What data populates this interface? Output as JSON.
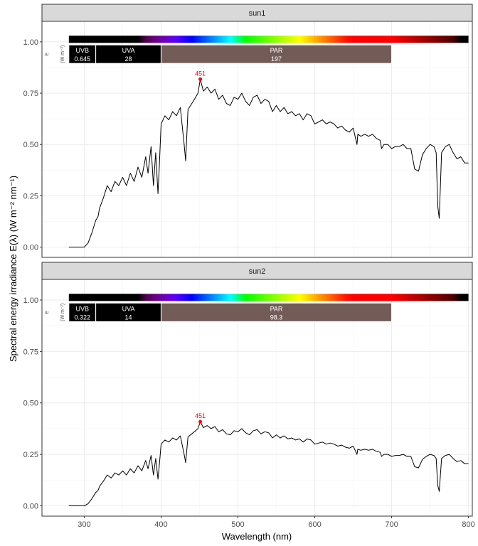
{
  "chart_data": {
    "type": "line",
    "xlabel": "Wavelength (nm)",
    "ylabel": "Spectral energy irradiance E(λ) (W m⁻² nm⁻¹)",
    "xlim": [
      245,
      805
    ],
    "ylim": [
      -0.05,
      1.1
    ],
    "x_ticks": [
      300,
      400,
      500,
      600,
      700,
      800
    ],
    "x_tick_labels": [
      "300",
      "400",
      "500",
      "600",
      "700",
      "800"
    ],
    "y_ticks": [
      0,
      0.25,
      0.5,
      0.75,
      1.0
    ],
    "y_tick_labels": [
      "0.00",
      "0.25",
      "0.50",
      "0.75",
      "1.00"
    ],
    "grid": true,
    "colors": {
      "panel_border": "#333333",
      "strip_fill": "#d9d9d9",
      "grid_major": "#ebebeb",
      "grid_minor": "#f5f5f5",
      "line": "#000000",
      "peak": "#ff0000",
      "uv_band": "#000000",
      "par_band": "#735c58"
    },
    "unit_label": {
      "title": "E",
      "units": "(W m⁻²)"
    },
    "panels": [
      {
        "strip": "sun1",
        "bands": [
          {
            "name": "UVB",
            "value": "0.645",
            "from": 280,
            "to": 315
          },
          {
            "name": "UVA",
            "value": "28",
            "from": 315,
            "to": 400
          },
          {
            "name": "PAR",
            "value": "197",
            "from": 400,
            "to": 700
          }
        ],
        "peak": {
          "x": 451,
          "y": 0.818,
          "label": "451"
        },
        "series": [
          {
            "x": [
              280,
              290,
              300,
              305,
              310,
              315,
              318,
              320,
              325,
              330,
              335,
              340,
              345,
              350,
              355,
              360,
              365,
              370,
              375,
              380,
              383,
              387,
              390,
              393,
              396,
              398,
              400,
              405,
              410,
              415,
              420,
              425,
              430,
              432,
              435,
              440,
              445,
              448,
              451,
              455,
              460,
              465,
              470,
              475,
              480,
              485,
              490,
              495,
              500,
              505,
              510,
              515,
              520,
              525,
              530,
              535,
              540,
              545,
              550,
              555,
              560,
              565,
              570,
              575,
              580,
              585,
              590,
              595,
              600,
              605,
              610,
              615,
              620,
              625,
              630,
              635,
              640,
              645,
              650,
              655,
              656,
              660,
              665,
              670,
              675,
              680,
              685,
              687,
              690,
              695,
              700,
              705,
              710,
              715,
              720,
              725,
              730,
              735,
              740,
              745,
              750,
              755,
              758,
              760,
              762,
              765,
              770,
              775,
              780,
              785,
              790,
              795,
              800
            ],
            "y": [
              0,
              0,
              0,
              0.02,
              0.07,
              0.13,
              0.15,
              0.19,
              0.24,
              0.3,
              0.27,
              0.32,
              0.3,
              0.34,
              0.3,
              0.36,
              0.32,
              0.39,
              0.34,
              0.44,
              0.36,
              0.49,
              0.3,
              0.46,
              0.26,
              0.42,
              0.6,
              0.64,
              0.62,
              0.66,
              0.64,
              0.68,
              0.5,
              0.42,
              0.67,
              0.7,
              0.73,
              0.75,
              0.818,
              0.76,
              0.78,
              0.75,
              0.77,
              0.72,
              0.74,
              0.7,
              0.69,
              0.73,
              0.72,
              0.75,
              0.71,
              0.69,
              0.73,
              0.74,
              0.7,
              0.72,
              0.71,
              0.66,
              0.69,
              0.66,
              0.68,
              0.65,
              0.66,
              0.64,
              0.65,
              0.62,
              0.65,
              0.64,
              0.6,
              0.61,
              0.62,
              0.6,
              0.61,
              0.6,
              0.58,
              0.59,
              0.57,
              0.56,
              0.58,
              0.5,
              0.55,
              0.54,
              0.55,
              0.54,
              0.55,
              0.53,
              0.52,
              0.48,
              0.5,
              0.5,
              0.48,
              0.49,
              0.49,
              0.5,
              0.48,
              0.48,
              0.38,
              0.37,
              0.45,
              0.48,
              0.5,
              0.49,
              0.46,
              0.2,
              0.14,
              0.46,
              0.49,
              0.5,
              0.46,
              0.43,
              0.44,
              0.41,
              0.41
            ]
          }
        ]
      },
      {
        "strip": "sun2",
        "bands": [
          {
            "name": "UVB",
            "value": "0.322",
            "from": 280,
            "to": 315
          },
          {
            "name": "UVA",
            "value": "14",
            "from": 315,
            "to": 400
          },
          {
            "name": "PAR",
            "value": "98.3",
            "from": 400,
            "to": 700
          }
        ],
        "peak": {
          "x": 451,
          "y": 0.409,
          "label": "451"
        },
        "series": [
          {
            "x": [
              280,
              290,
              300,
              305,
              310,
              315,
              318,
              320,
              325,
              330,
              335,
              340,
              345,
              350,
              355,
              360,
              365,
              370,
              375,
              380,
              383,
              387,
              390,
              393,
              396,
              398,
              400,
              405,
              410,
              415,
              420,
              425,
              430,
              432,
              435,
              440,
              445,
              448,
              451,
              455,
              460,
              465,
              470,
              475,
              480,
              485,
              490,
              495,
              500,
              505,
              510,
              515,
              520,
              525,
              530,
              535,
              540,
              545,
              550,
              555,
              560,
              565,
              570,
              575,
              580,
              585,
              590,
              595,
              600,
              605,
              610,
              615,
              620,
              625,
              630,
              635,
              640,
              645,
              650,
              655,
              656,
              660,
              665,
              670,
              675,
              680,
              685,
              687,
              690,
              695,
              700,
              705,
              710,
              715,
              720,
              725,
              730,
              735,
              740,
              745,
              750,
              755,
              758,
              760,
              762,
              765,
              770,
              775,
              780,
              785,
              790,
              795,
              800
            ],
            "y": [
              0,
              0,
              0,
              0.01,
              0.035,
              0.065,
              0.075,
              0.095,
              0.12,
              0.15,
              0.135,
              0.16,
              0.15,
              0.17,
              0.15,
              0.18,
              0.16,
              0.195,
              0.17,
              0.22,
              0.18,
              0.245,
              0.15,
              0.23,
              0.13,
              0.21,
              0.3,
              0.32,
              0.31,
              0.33,
              0.32,
              0.34,
              0.25,
              0.21,
              0.335,
              0.35,
              0.365,
              0.375,
              0.409,
              0.38,
              0.39,
              0.375,
              0.385,
              0.36,
              0.37,
              0.35,
              0.345,
              0.365,
              0.36,
              0.375,
              0.355,
              0.345,
              0.365,
              0.37,
              0.35,
              0.36,
              0.355,
              0.33,
              0.345,
              0.33,
              0.34,
              0.325,
              0.33,
              0.32,
              0.325,
              0.31,
              0.325,
              0.32,
              0.3,
              0.305,
              0.31,
              0.3,
              0.305,
              0.3,
              0.29,
              0.295,
              0.285,
              0.28,
              0.29,
              0.25,
              0.275,
              0.27,
              0.275,
              0.27,
              0.275,
              0.265,
              0.26,
              0.24,
              0.25,
              0.25,
              0.24,
              0.245,
              0.245,
              0.25,
              0.24,
              0.24,
              0.19,
              0.185,
              0.225,
              0.24,
              0.25,
              0.245,
              0.23,
              0.1,
              0.07,
              0.23,
              0.245,
              0.25,
              0.23,
              0.215,
              0.22,
              0.205,
              0.205
            ]
          }
        ]
      }
    ]
  }
}
